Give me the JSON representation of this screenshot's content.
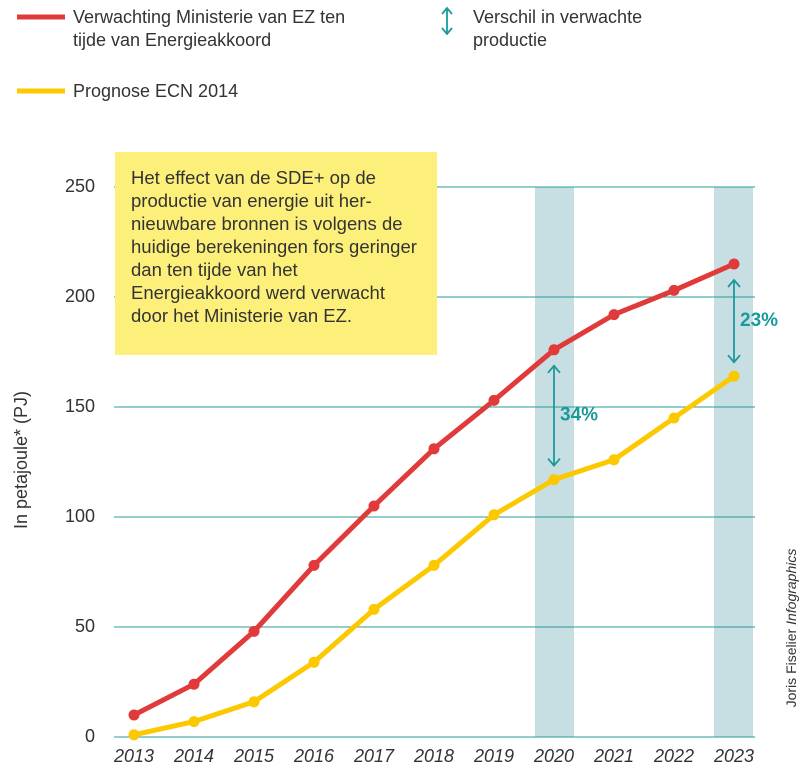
{
  "chart_data": {
    "type": "line",
    "y_label": "In petajoule* (PJ)",
    "categories": [
      "2013",
      "2014",
      "2015",
      "2016",
      "2017",
      "2018",
      "2019",
      "2020",
      "2021",
      "2022",
      "2023"
    ],
    "series": [
      {
        "name": "Verwachting Ministerie van EZ ten tijde van Energieakkoord",
        "color": "#e03a3a",
        "values": [
          10,
          24,
          48,
          78,
          105,
          131,
          153,
          176,
          192,
          203,
          215
        ]
      },
      {
        "name": "Prognose ECN 2014",
        "color": "#fcc800",
        "values": [
          1,
          7,
          16,
          34,
          58,
          78,
          101,
          117,
          126,
          145,
          164
        ]
      }
    ],
    "difference_label": "Verschil in verwachte productie",
    "annotations": [
      {
        "text": "34%",
        "x": "2020"
      },
      {
        "text": "23%",
        "x": "2023"
      }
    ],
    "note": "Het effect van de SDE+ op de productie van energie uit her-nieuwbare bronnen is volgens de huidige berekeningen fors geringer dan ten tijde van het Energieakkoord werd verwacht door het Ministerie van EZ.",
    "credit": {
      "name": "Joris Fiselier",
      "agency": "Infographics"
    },
    "ylim": [
      0,
      250
    ],
    "yticks": [
      0,
      50,
      100,
      150,
      200,
      250
    ],
    "grid": true
  }
}
